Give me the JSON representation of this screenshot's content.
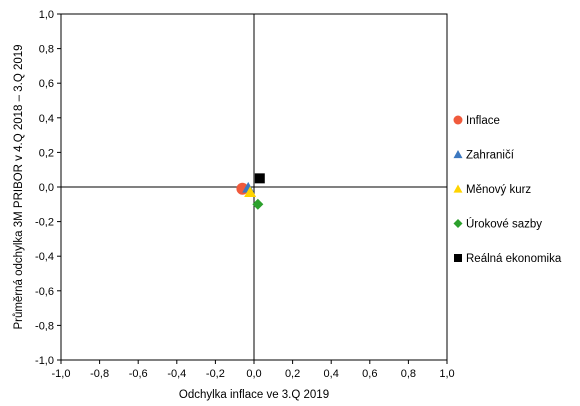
{
  "chart_data": {
    "type": "scatter",
    "xlabel": "Odchylka inflace ve 3.Q 2019",
    "ylabel": "Průměrná odchylka 3M PRIBOR v 4.Q 2018 – 3.Q 2019",
    "xlim": [
      -1.0,
      1.0
    ],
    "ylim": [
      -1.0,
      1.0
    ],
    "x_ticks": [
      "-1,0",
      "-0,8",
      "-0,6",
      "-0,4",
      "-0,2",
      "0,0",
      "0,2",
      "0,4",
      "0,6",
      "0,8",
      "1,0"
    ],
    "y_ticks": [
      "1,0",
      "0,8",
      "0,6",
      "0,4",
      "0,2",
      "0,0",
      "-0,2",
      "-0,4",
      "-0,6",
      "-0,8",
      "-1,0"
    ],
    "grid": false,
    "legend_position": "right",
    "series": [
      {
        "name": "Inflace",
        "marker": "circle",
        "color": "#f05a3c",
        "x": -0.06,
        "y": -0.01
      },
      {
        "name": "Zahraničí",
        "marker": "triangle",
        "color": "#3c78c0",
        "x": -0.03,
        "y": -0.005
      },
      {
        "name": "Měnový kurz",
        "marker": "triangle",
        "color": "#ffd400",
        "x": -0.02,
        "y": -0.03
      },
      {
        "name": "Úrokové sazby",
        "marker": "diamond",
        "color": "#2ca02c",
        "x": 0.02,
        "y": -0.1
      },
      {
        "name": "Reálná ekonomika",
        "marker": "square",
        "color": "#000000",
        "x": 0.03,
        "y": 0.05
      }
    ]
  }
}
